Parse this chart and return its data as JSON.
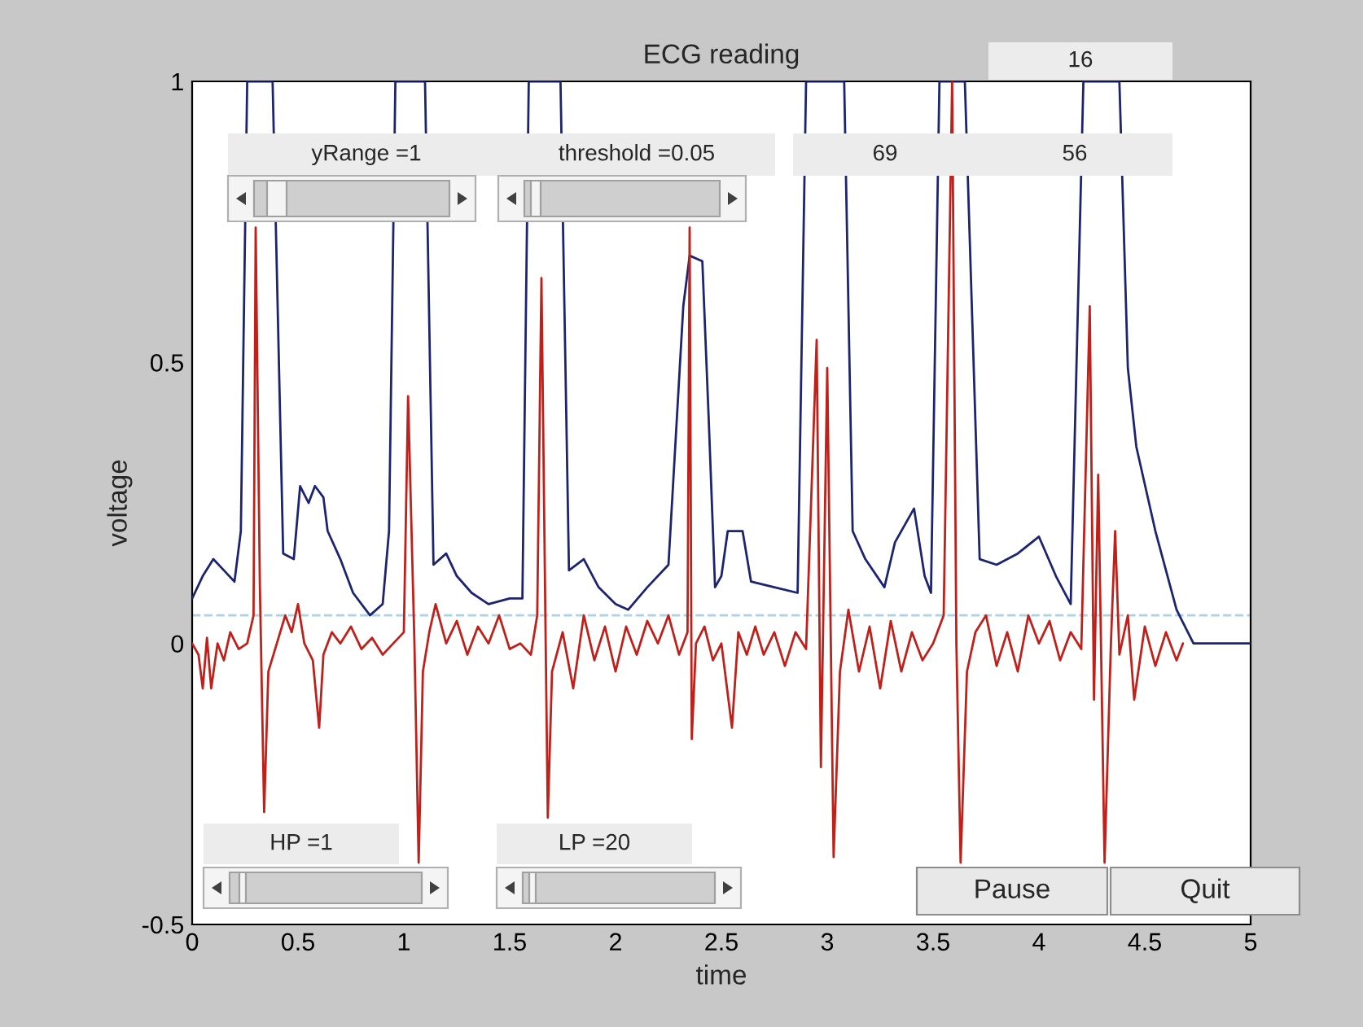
{
  "chart_data": {
    "type": "line",
    "title": "ECG reading",
    "xlabel": "time",
    "ylabel": "voltage",
    "xlim": [
      0,
      5
    ],
    "ylim": [
      -0.5,
      1
    ],
    "xticks": [
      0,
      0.5,
      1,
      1.5,
      2,
      2.5,
      3,
      3.5,
      4,
      4.5,
      5
    ],
    "yticks": [
      -0.5,
      0,
      0.5,
      1
    ],
    "grid": false,
    "legend": false,
    "line_style": "solid",
    "marker": "none",
    "ref_lines": [
      {
        "axis": "y",
        "value": 0.05,
        "color": "#a8d4e6",
        "line_style": "dashed"
      }
    ],
    "annotations": [
      "yRange =1",
      "threshold =0.05",
      "69",
      "56",
      "16",
      "HP =1",
      "LP =20",
      "Pause",
      "Quit"
    ],
    "series": [
      {
        "color": "#1c2470",
        "x": [
          0,
          0.05,
          0.1,
          0.15,
          0.2,
          0.23,
          0.26,
          0.38,
          0.43,
          0.48,
          0.51,
          0.55,
          0.58,
          0.62,
          0.64,
          0.7,
          0.76,
          0.84,
          0.9,
          0.93,
          0.96,
          1.1,
          1.14,
          1.2,
          1.25,
          1.32,
          1.4,
          1.5,
          1.56,
          1.59,
          1.74,
          1.78,
          1.85,
          1.92,
          2.0,
          2.06,
          2.15,
          2.25,
          2.32,
          2.35,
          2.41,
          2.44,
          2.47,
          2.5,
          2.53,
          2.6,
          2.64,
          2.75,
          2.86,
          2.9,
          3.08,
          3.12,
          3.18,
          3.27,
          3.32,
          3.41,
          3.46,
          3.49,
          3.53,
          3.65,
          3.72,
          3.8,
          3.9,
          4.0,
          4.08,
          4.15,
          4.21,
          4.38,
          4.42,
          4.46,
          4.55,
          4.65,
          4.73,
          5.0
        ],
        "values": [
          0.08,
          0.12,
          0.15,
          0.13,
          0.11,
          0.2,
          1.0,
          1.0,
          0.16,
          0.15,
          0.28,
          0.25,
          0.28,
          0.26,
          0.2,
          0.15,
          0.09,
          0.05,
          0.07,
          0.2,
          1.0,
          1.0,
          0.14,
          0.16,
          0.12,
          0.09,
          0.07,
          0.08,
          0.08,
          1.0,
          1.0,
          0.13,
          0.15,
          0.1,
          0.07,
          0.06,
          0.1,
          0.14,
          0.6,
          0.69,
          0.68,
          0.4,
          0.1,
          0.12,
          0.2,
          0.2,
          0.11,
          0.1,
          0.09,
          1.0,
          1.0,
          0.2,
          0.15,
          0.1,
          0.18,
          0.24,
          0.12,
          0.09,
          1.0,
          1.0,
          0.15,
          0.14,
          0.16,
          0.19,
          0.12,
          0.07,
          1.0,
          1.0,
          0.49,
          0.35,
          0.2,
          0.06,
          0.0,
          0.0
        ]
      },
      {
        "color": "#c0201a",
        "x": [
          0,
          0.03,
          0.05,
          0.07,
          0.09,
          0.12,
          0.15,
          0.18,
          0.22,
          0.26,
          0.29,
          0.3,
          0.32,
          0.34,
          0.36,
          0.4,
          0.44,
          0.47,
          0.5,
          0.53,
          0.57,
          0.6,
          0.62,
          0.66,
          0.7,
          0.75,
          0.8,
          0.85,
          0.9,
          0.95,
          1.0,
          1.02,
          1.05,
          1.07,
          1.09,
          1.12,
          1.15,
          1.2,
          1.25,
          1.3,
          1.35,
          1.4,
          1.45,
          1.5,
          1.55,
          1.6,
          1.63,
          1.65,
          1.67,
          1.68,
          1.7,
          1.75,
          1.8,
          1.85,
          1.9,
          1.95,
          2.0,
          2.05,
          2.1,
          2.15,
          2.2,
          2.25,
          2.3,
          2.34,
          2.35,
          2.36,
          2.38,
          2.42,
          2.46,
          2.5,
          2.55,
          2.58,
          2.62,
          2.66,
          2.7,
          2.75,
          2.8,
          2.85,
          2.9,
          2.95,
          2.97,
          3.0,
          3.03,
          3.06,
          3.1,
          3.15,
          3.2,
          3.25,
          3.3,
          3.35,
          3.4,
          3.45,
          3.5,
          3.55,
          3.59,
          3.61,
          3.63,
          3.66,
          3.7,
          3.75,
          3.8,
          3.85,
          3.9,
          3.95,
          4.0,
          4.05,
          4.1,
          4.15,
          4.2,
          4.24,
          4.26,
          4.28,
          4.31,
          4.34,
          4.36,
          4.38,
          4.42,
          4.45,
          4.5,
          4.55,
          4.6,
          4.65,
          4.68
        ],
        "values": [
          0.0,
          -0.02,
          -0.08,
          0.01,
          -0.08,
          0.0,
          -0.03,
          0.02,
          -0.01,
          0.0,
          0.05,
          0.74,
          0.1,
          -0.3,
          -0.05,
          0.0,
          0.05,
          0.02,
          0.07,
          0.0,
          -0.03,
          -0.15,
          -0.02,
          0.02,
          0.0,
          0.03,
          -0.01,
          0.01,
          -0.02,
          0.0,
          0.02,
          0.44,
          0.0,
          -0.39,
          -0.05,
          0.02,
          0.07,
          0.0,
          0.04,
          -0.02,
          0.03,
          0.0,
          0.05,
          -0.01,
          0.0,
          -0.02,
          0.05,
          0.65,
          0.0,
          -0.31,
          -0.05,
          0.02,
          -0.08,
          0.05,
          -0.03,
          0.03,
          -0.05,
          0.03,
          -0.02,
          0.04,
          0.0,
          0.05,
          -0.02,
          0.02,
          0.74,
          -0.17,
          0.0,
          0.03,
          -0.03,
          0.0,
          -0.15,
          0.02,
          -0.02,
          0.03,
          -0.02,
          0.02,
          -0.04,
          0.02,
          -0.01,
          0.54,
          -0.22,
          0.49,
          -0.38,
          -0.05,
          0.06,
          -0.05,
          0.03,
          -0.08,
          0.04,
          -0.05,
          0.02,
          -0.03,
          0.0,
          0.05,
          1.0,
          0.0,
          -0.39,
          -0.05,
          0.02,
          0.05,
          -0.04,
          0.02,
          -0.05,
          0.05,
          0.0,
          0.04,
          -0.03,
          0.02,
          -0.01,
          0.6,
          -0.1,
          0.3,
          -0.39,
          0.0,
          0.2,
          -0.02,
          0.05,
          -0.1,
          0.03,
          -0.04,
          0.02,
          -0.03,
          0.0
        ]
      }
    ]
  }
}
